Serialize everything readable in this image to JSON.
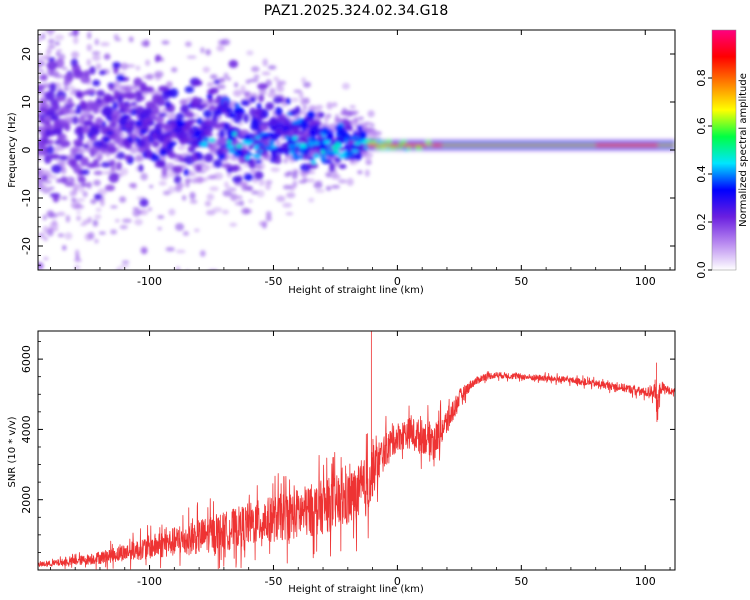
{
  "title": "PAZ1.2025.324.02.34.G18",
  "chart_data": [
    {
      "type": "heatmap",
      "xlabel": "Height of straight line (km)",
      "ylabel": "Frequency (Hz)",
      "xlim": [
        -145,
        112
      ],
      "ylim": [
        -25,
        25
      ],
      "x_ticks": [
        -100,
        -50,
        0,
        50,
        100
      ],
      "y_ticks": [
        -20,
        -10,
        0,
        10,
        20
      ],
      "description": "Spectrogram: scattered low-amplitude power at negative heights converging to a narrow high-amplitude line near 1 Hz for heights above -12 km",
      "ridge": {
        "start_x": -12,
        "end_x": 112,
        "frequency": 1.0,
        "peak_amplitude": 1.0
      },
      "colorbar": {
        "label": "Normalized spectral amplitude",
        "range": [
          0,
          1
        ],
        "ticks": [
          "0.0",
          "0.2",
          "0.4",
          "0.6",
          "0.8"
        ],
        "tick_values": [
          0.0,
          0.2,
          0.4,
          0.6,
          0.8
        ],
        "colors": [
          "#ffffff",
          "#b98af0",
          "#6a1fe0",
          "#0000ff",
          "#00e5ff",
          "#00ff44",
          "#ffff00",
          "#ff8000",
          "#ff0000",
          "#ff0080"
        ]
      }
    },
    {
      "type": "line",
      "xlabel": "Height of straight line (km)",
      "ylabel": "SNR (10 * v/v)",
      "xlim": [
        -145,
        112
      ],
      "ylim": [
        0,
        6800
      ],
      "x_ticks": [
        -100,
        -50,
        0,
        50,
        100
      ],
      "y_ticks": [
        2000,
        4000,
        6000
      ],
      "series": [
        {
          "name": "SNR",
          "color": "#ee3333",
          "x": [
            -145,
            -130,
            -120,
            -110,
            -100,
            -90,
            -80,
            -70,
            -60,
            -50,
            -40,
            -30,
            -20,
            -15,
            -12,
            -10,
            -5,
            0,
            5,
            10,
            15,
            20,
            25,
            30,
            35,
            40,
            50,
            60,
            70,
            80,
            90,
            100,
            104,
            105,
            106,
            110,
            112
          ],
          "y": [
            150,
            250,
            350,
            500,
            650,
            800,
            950,
            1100,
            1300,
            1450,
            1600,
            1800,
            2000,
            2200,
            2400,
            2800,
            3400,
            3800,
            3900,
            3800,
            3700,
            4200,
            4900,
            5300,
            5500,
            5550,
            5500,
            5450,
            5400,
            5300,
            5200,
            5050,
            5100,
            4500,
            5200,
            5100,
            5050
          ],
          "noise_amplitude": [
            80,
            150,
            220,
            300,
            420,
            520,
            620,
            680,
            760,
            820,
            900,
            960,
            1000,
            1000,
            1100,
            900,
            600,
            500,
            550,
            600,
            600,
            500,
            300,
            150,
            120,
            110,
            110,
            110,
            110,
            120,
            140,
            160,
            250,
            700,
            250,
            120,
            100
          ]
        }
      ],
      "annotations": [
        {
          "x": -10.5,
          "y": 6800,
          "text": "spike"
        },
        {
          "x": 104.5,
          "y": 5900,
          "text": "spike"
        }
      ]
    }
  ]
}
